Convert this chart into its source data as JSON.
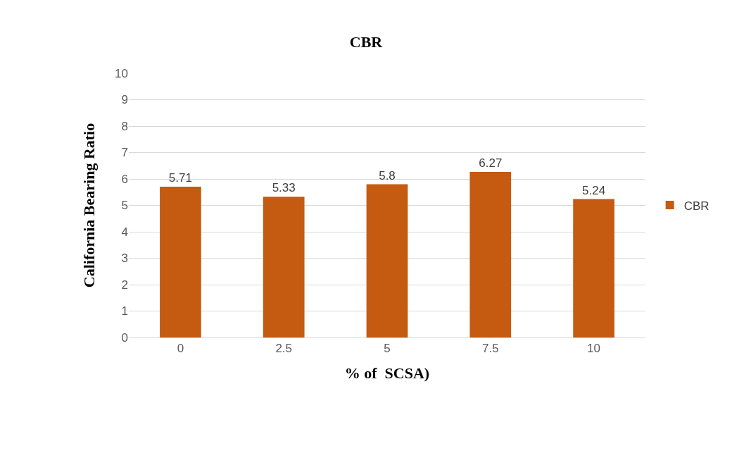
{
  "chart_data": {
    "type": "bar",
    "title": "CBR",
    "xlabel": "% of  SCSA)",
    "ylabel": "California Bearing Ratio",
    "categories": [
      "0",
      "2.5",
      "5",
      "7.5",
      "10"
    ],
    "series": [
      {
        "name": "CBR",
        "color": "#c55a11",
        "values": [
          5.71,
          5.33,
          5.8,
          6.27,
          5.24
        ]
      }
    ],
    "ylim": [
      0,
      10
    ],
    "yticks": [
      0,
      1,
      2,
      3,
      4,
      5,
      6,
      7,
      8,
      9,
      10
    ],
    "grid": "y",
    "legend": "right",
    "data_labels": true
  }
}
